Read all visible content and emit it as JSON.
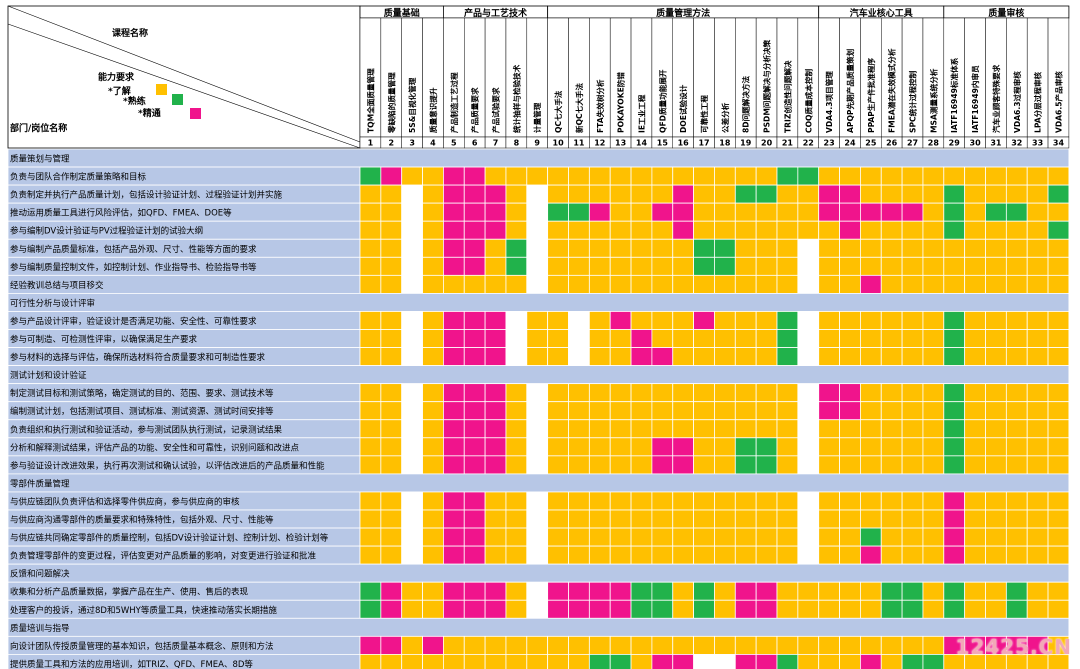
{
  "header": {
    "course_label": "课程名称",
    "dept_label": "部门/岗位名称",
    "ability_title": "能力要求",
    "legend": [
      {
        "label": "*了解",
        "color": "#FFC000"
      },
      {
        "label": "*熟练",
        "color": "#21B24B"
      },
      {
        "label": "*精通",
        "color": "#F0148C"
      }
    ]
  },
  "groups": [
    {
      "name": "质量基础",
      "span": 4
    },
    {
      "name": "产品与工艺技术",
      "span": 5
    },
    {
      "name": "质量管理方法",
      "span": 13
    },
    {
      "name": "汽车业核心工具",
      "span": 6
    },
    {
      "name": "质量审核",
      "span": 6
    }
  ],
  "courses": [
    "TQM全面质量管理",
    "零缺陷的质量管理",
    "5S&目视化管理",
    "质量意识提升",
    "产品制造工艺过程",
    "产品质量要求",
    "产品试验要求",
    "统计抽样与检验技术",
    "计量管理",
    "QC七大手法",
    "新QC七大手法",
    "FTA失效树分析",
    "POKAYOKE防错",
    "IE工业工程",
    "QFD质量功能展开",
    "DOE试验设计",
    "可靠性工程",
    "公差分析",
    "8D问题解决方法",
    "PSDM问题解决与分析决策",
    "TRIZ创造性问题解决",
    "COQ质量成本控制",
    "VDA4.3项目管理",
    "APQP先期产品质量策划",
    "PPAP生产件批准程序",
    "FMEA潜在失效模式分析",
    "SPC统计过程控制",
    "MSA测量系统分析",
    "IATF16949标准体系",
    "IATF16949内审员",
    "汽车业顾客特殊要求",
    "VDA6.3过程审核",
    "LPA分层过程审核",
    "VDA6.5产品审核"
  ],
  "legend_codes": {
    "Y": "#FFC000",
    "G": "#21B24B",
    "M": "#F0148C",
    "W": "#FFFFFF",
    "B": "#B7C7E6"
  },
  "rows": [
    {
      "type": "section",
      "label": "质量策划与管理"
    },
    {
      "type": "data",
      "label": "负责与团队合作制定质量策略和目标",
      "cells": "GMYYMMYYYYYYYYYYYYYYGGYYYYYYYYYYYY"
    },
    {
      "type": "data",
      "label": "负责制定并执行产品质量计划，包括设计验证计划、过程验证计划并实施",
      "cells": "YYWYMMMYWYYYYYYMYYGGYYMMYYYYGYYYYG"
    },
    {
      "type": "data",
      "label": "推动运用质量工具进行风险评估，如QFD、FMEA、DOE等",
      "cells": "YYWYMMMYWGGMYYMMYYYYYYMMMMMYGYGGYY"
    },
    {
      "type": "data",
      "label": "参与编制DV设计验证与PV过程验证计划的试验大纲",
      "cells": "YYWYMMMYWYYYYYYMYYYYYYYMYYYYGYYYYG"
    },
    {
      "type": "data",
      "label": "参与编制产品质量标准，包括产品外观、尺寸、性能等方面的要求",
      "cells": "YYWYMMYGWYYYYYYYGGYYYWYYYYYYYYYYYY"
    },
    {
      "type": "data",
      "label": "参与编制质量控制文件，如控制计划、作业指导书、检验指导书等",
      "cells": "YYWYMMYGWYYYYYYYGGYYYWYYYYYYYYYYYY"
    },
    {
      "type": "data",
      "label": "经验教训总结与项目移交",
      "cells": "YYWYYYYYWYYYYYYYYYYYYWYYMYYYYYYYYY"
    },
    {
      "type": "section",
      "label": "可行性分析与设计评审"
    },
    {
      "type": "data",
      "label": "参与产品设计评审，验证设计是否满足功能、安全性、可靠性要求",
      "cells": "YYWYMMMWYYWYMYYYMYYYGWYYYYYYGYYYYY"
    },
    {
      "type": "data",
      "label": "参与可制造、可检测性评审，以确保满足生产要求",
      "cells": "YYWYMMMWYYWYYMYYYYYYGWYYYYYYGYYYYY"
    },
    {
      "type": "data",
      "label": "参与材料的选择与评估，确保所选材料符合质量要求和可制造性要求",
      "cells": "YYWYMMMWYYWYYMMYYYYYGWYYYYYYGYYYYY"
    },
    {
      "type": "section",
      "label": "测试计划和设计验证"
    },
    {
      "type": "data",
      "label": "制定测试目标和测试策略，确定测试的目的、范围、要求、测试技术等",
      "cells": "YYWYMMMYWYYYYYYYYYYYYWMMYYYYGYYYYY"
    },
    {
      "type": "data",
      "label": "编制测试计划，包括测试项目、测试标准、测试资源、测试时间安排等",
      "cells": "YYWYMMMYWYYYYYYYYYYYYWMMYYYYGYYYYY"
    },
    {
      "type": "data",
      "label": "负责组织和执行测试和验证活动，参与测试团队执行测试，记录测试结果",
      "cells": "YYWYMMMYWYYYYYYYYYYYYWYYYYYYGYYYYY"
    },
    {
      "type": "data",
      "label": "分析和解释测试结果，评估产品的功能、安全性和可靠性，识别问题和改进点",
      "cells": "YYWYMMMYWYYYYYMMYYGGYWYYYYYYGYYYYY"
    },
    {
      "type": "data",
      "label": "参与验证设计改进效果，执行再次测试和确认试验，以评估改进后的产品质量和性能",
      "cells": "YYWYMMMYWYYYYYMMYYGGYWYYYYYYGYYYYY"
    },
    {
      "type": "section",
      "label": "零部件质量管理"
    },
    {
      "type": "data",
      "label": "与供应链团队负责评估和选择零件供应商，参与供应商的审核",
      "cells": "YYWYMMYYWYYYYYYYYYYYYWYYYYYYMYYYYY"
    },
    {
      "type": "data",
      "label": "与供应商沟通零部件的质量要求和特殊特性，包括外观、尺寸、性能等",
      "cells": "YYWYMMYYWYYYYYYYYYYYYWYYYYYYMYYYYY"
    },
    {
      "type": "data",
      "label": "与供应链共同确定零部件的质量控制，包括DV设计验证计划、控制计划、检验计划等",
      "cells": "YYWYMMYYWYYYYYYYYYYYYWYYGYYYMYYYYY"
    },
    {
      "type": "data",
      "label": "负责管理零部件的变更过程，评估变更对产品质量的影响，对变更进行验证和批准",
      "cells": "YYWYMMYYWYYYYYYYYYYYYWYYMYYYMYYYYY"
    },
    {
      "type": "section",
      "label": "反馈和问题解决"
    },
    {
      "type": "data",
      "label": "收集和分析产品质量数据，掌握产品在生产、使用、售后的表现",
      "cells": "GMYYMMMYWMMMMGGYGYMMYYYYYGGYGYYGYY"
    },
    {
      "type": "data",
      "label": "处理客户的投诉，通过8D和5WHY等质量工具，快速推动落实长期措施",
      "cells": "GMYYMMMYWMMMMGGYGYMMYYYYYGGYGYYGYY"
    },
    {
      "type": "section",
      "label": "质量培训与指导"
    },
    {
      "type": "data",
      "label": "向设计团队传授质量管理的基本知识，包括质量基本概念、原则和方法",
      "cells": "MMYMYYYYYYYYYYYYYYYYYYYYYYYYMMMMMY"
    },
    {
      "type": "data",
      "label": "提供质量工具和方法的应用培训，如TRIZ、QFD、FMEA、8D等",
      "cells": "YYYYYYYYYYYGGYMMWWMMGYYYMYGGYYYYYY"
    }
  ],
  "watermark": "12425.CN"
}
